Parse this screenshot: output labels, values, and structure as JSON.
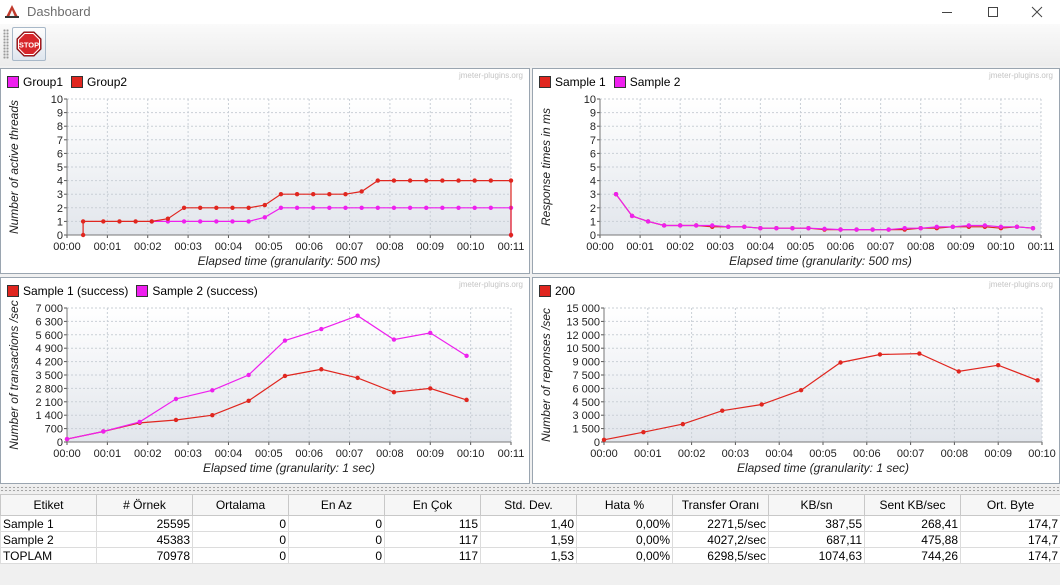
{
  "window": {
    "title": "Dashboard",
    "minimize_glyph": "—",
    "close_glyph": "✕",
    "app_icon": "jmeter-feather-icon",
    "stop_icon": "stop-sign-icon",
    "stop_label": "STOP"
  },
  "watermark": "jmeter-plugins.org",
  "colors": {
    "red": "#e0261f",
    "magenta": "#ee20ee",
    "grid": "#c9cfd6",
    "plot_bg_top": "#ffffff",
    "plot_bg_bottom": "#e2e6ec"
  },
  "chart_data": [
    {
      "type": "line",
      "xlabel": "Elapsed time (granularity: 500 ms)",
      "ylabel": "Number of active threads",
      "xticks": [
        "00:00",
        "00:01",
        "00:02",
        "00:03",
        "00:04",
        "00:05",
        "00:06",
        "00:07",
        "00:08",
        "00:09",
        "00:10",
        "00:11"
      ],
      "yticks": [
        "0",
        "1",
        "2",
        "3",
        "4",
        "5",
        "6",
        "7",
        "8",
        "9",
        "10"
      ],
      "xlim": [
        0,
        11
      ],
      "ylim": [
        0,
        10
      ],
      "grid": true,
      "legend_position": "top-left",
      "series": [
        {
          "name": "Group1",
          "color": "#ee20ee",
          "x": [
            2.1,
            2.5,
            2.9,
            3.3,
            3.7,
            4.1,
            4.5,
            4.9,
            5.3,
            5.7,
            6.1,
            6.5,
            6.9,
            7.3,
            7.7,
            8.1,
            8.5,
            8.9,
            9.3,
            9.7,
            10.1,
            10.5,
            11.0,
            11.0
          ],
          "y": [
            1,
            1,
            1,
            1,
            1,
            1,
            1,
            1.3,
            2,
            2,
            2,
            2,
            2,
            2,
            2,
            2,
            2,
            2,
            2,
            2,
            2,
            2,
            2,
            0
          ]
        },
        {
          "name": "Group2",
          "color": "#e0261f",
          "x": [
            0.4,
            0.4,
            0.9,
            1.3,
            1.7,
            2.1,
            2.5,
            2.9,
            3.3,
            3.7,
            4.1,
            4.5,
            4.9,
            5.3,
            5.7,
            6.1,
            6.5,
            6.9,
            7.3,
            7.7,
            8.1,
            8.5,
            8.9,
            9.3,
            9.7,
            10.1,
            10.5,
            11.0,
            11.0
          ],
          "y": [
            0,
            1,
            1,
            1,
            1,
            1,
            1.2,
            2,
            2,
            2,
            2,
            2,
            2.2,
            3,
            3,
            3,
            3,
            3,
            3.2,
            4,
            4,
            4,
            4,
            4,
            4,
            4,
            4,
            4,
            0
          ]
        }
      ]
    },
    {
      "type": "line",
      "xlabel": "Elapsed time (granularity: 500 ms)",
      "ylabel": "Response times in ms",
      "xticks": [
        "00:00",
        "00:01",
        "00:02",
        "00:03",
        "00:04",
        "00:05",
        "00:06",
        "00:07",
        "00:08",
        "00:09",
        "00:10",
        "00:11"
      ],
      "yticks": [
        "0",
        "1",
        "2",
        "3",
        "4",
        "5",
        "6",
        "7",
        "8",
        "9",
        "10"
      ],
      "xlim": [
        0,
        11
      ],
      "ylim": [
        0,
        10
      ],
      "grid": true,
      "legend_position": "top-left",
      "series": [
        {
          "name": "Sample 1",
          "color": "#e0261f",
          "x": [
            0.4,
            0.8,
            1.2,
            1.6,
            2.0,
            2.4,
            2.8,
            3.2,
            3.6,
            4.0,
            4.4,
            4.8,
            5.2,
            5.6,
            6.0,
            6.4,
            6.8,
            7.2,
            7.6,
            8.0,
            8.4,
            8.8,
            9.2,
            9.6,
            10.0,
            10.4,
            10.8
          ],
          "y": [
            3.0,
            1.4,
            1.0,
            0.7,
            0.7,
            0.7,
            0.6,
            0.6,
            0.6,
            0.5,
            0.5,
            0.5,
            0.5,
            0.4,
            0.4,
            0.4,
            0.4,
            0.4,
            0.4,
            0.5,
            0.5,
            0.6,
            0.6,
            0.6,
            0.5,
            0.6,
            0.5
          ]
        },
        {
          "name": "Sample 2",
          "color": "#ee20ee",
          "x": [
            0.4,
            0.8,
            1.2,
            1.6,
            2.0,
            2.4,
            2.8,
            3.2,
            3.6,
            4.0,
            4.4,
            4.8,
            5.2,
            5.6,
            6.0,
            6.4,
            6.8,
            7.2,
            7.6,
            8.0,
            8.4,
            8.8,
            9.2,
            9.6,
            10.0,
            10.4,
            10.8
          ],
          "y": [
            3.0,
            1.4,
            1.0,
            0.7,
            0.7,
            0.7,
            0.7,
            0.6,
            0.6,
            0.5,
            0.5,
            0.5,
            0.5,
            0.45,
            0.4,
            0.4,
            0.4,
            0.4,
            0.5,
            0.5,
            0.6,
            0.6,
            0.7,
            0.7,
            0.6,
            0.6,
            0.5
          ]
        }
      ]
    },
    {
      "type": "line",
      "xlabel": "Elapsed time (granularity: 1 sec)",
      "ylabel": "Number of transactions /sec",
      "xticks": [
        "00:00",
        "00:01",
        "00:02",
        "00:03",
        "00:04",
        "00:05",
        "00:06",
        "00:07",
        "00:08",
        "00:09",
        "00:10",
        "00:11"
      ],
      "yticks": [
        "0",
        "700",
        "1 400",
        "2 100",
        "2 800",
        "3 500",
        "4 200",
        "4 900",
        "5 600",
        "6 300",
        "7 000"
      ],
      "xlim": [
        0,
        11
      ],
      "ylim": [
        0,
        7000
      ],
      "grid": true,
      "legend_position": "top-left",
      "series": [
        {
          "name": "Sample 1 (success)",
          "color": "#e0261f",
          "x": [
            0,
            0.9,
            1.8,
            2.7,
            3.6,
            4.5,
            5.4,
            6.3,
            7.2,
            8.1,
            9.0,
            9.9
          ],
          "y": [
            150,
            550,
            1000,
            1150,
            1400,
            2150,
            3450,
            3800,
            3350,
            2600,
            2800,
            2200
          ]
        },
        {
          "name": "Sample 2 (success)",
          "color": "#ee20ee",
          "x": [
            0,
            0.9,
            1.8,
            2.7,
            3.6,
            4.5,
            5.4,
            6.3,
            7.2,
            8.1,
            9.0,
            9.9
          ],
          "y": [
            150,
            550,
            1050,
            2250,
            2700,
            3500,
            5300,
            5900,
            6600,
            5350,
            5700,
            4500
          ]
        }
      ]
    },
    {
      "type": "line",
      "xlabel": "Elapsed time (granularity: 1 sec)",
      "ylabel": "Number of reponses /sec",
      "xticks": [
        "00:00",
        "00:01",
        "00:02",
        "00:03",
        "00:04",
        "00:05",
        "00:06",
        "00:07",
        "00:08",
        "00:09",
        "00:10"
      ],
      "yticks": [
        "0",
        "1 500",
        "3 000",
        "4 500",
        "6 000",
        "7 500",
        "9 000",
        "10 500",
        "12 000",
        "13 500",
        "15 000"
      ],
      "xlim": [
        0,
        10
      ],
      "ylim": [
        0,
        15000
      ],
      "grid": true,
      "legend_position": "top-left",
      "series": [
        {
          "name": "200",
          "color": "#e0261f",
          "x": [
            0,
            0.9,
            1.8,
            2.7,
            3.6,
            4.5,
            5.4,
            6.3,
            7.2,
            8.1,
            9.0,
            9.9
          ],
          "y": [
            250,
            1100,
            2000,
            3500,
            4200,
            5800,
            8900,
            9800,
            9900,
            7900,
            8600,
            6900
          ]
        }
      ]
    }
  ],
  "table": {
    "headers": [
      "Etiket",
      "# Örnek",
      "Ortalama",
      "En Az",
      "En Çok",
      "Std. Dev.",
      "Hata %",
      "Transfer Oranı",
      "KB/sn",
      "Sent KB/sec",
      "Ort. Byte"
    ],
    "rows": [
      [
        "Sample 1",
        "25595",
        "0",
        "0",
        "115",
        "1,40",
        "0,00%",
        "2271,5/sec",
        "387,55",
        "268,41",
        "174,7"
      ],
      [
        "Sample 2",
        "45383",
        "0",
        "0",
        "117",
        "1,59",
        "0,00%",
        "4027,2/sec",
        "687,11",
        "475,88",
        "174,7"
      ],
      [
        "TOPLAM",
        "70978",
        "0",
        "0",
        "117",
        "1,53",
        "0,00%",
        "6298,5/sec",
        "1074,63",
        "744,26",
        "174,7"
      ]
    ]
  }
}
